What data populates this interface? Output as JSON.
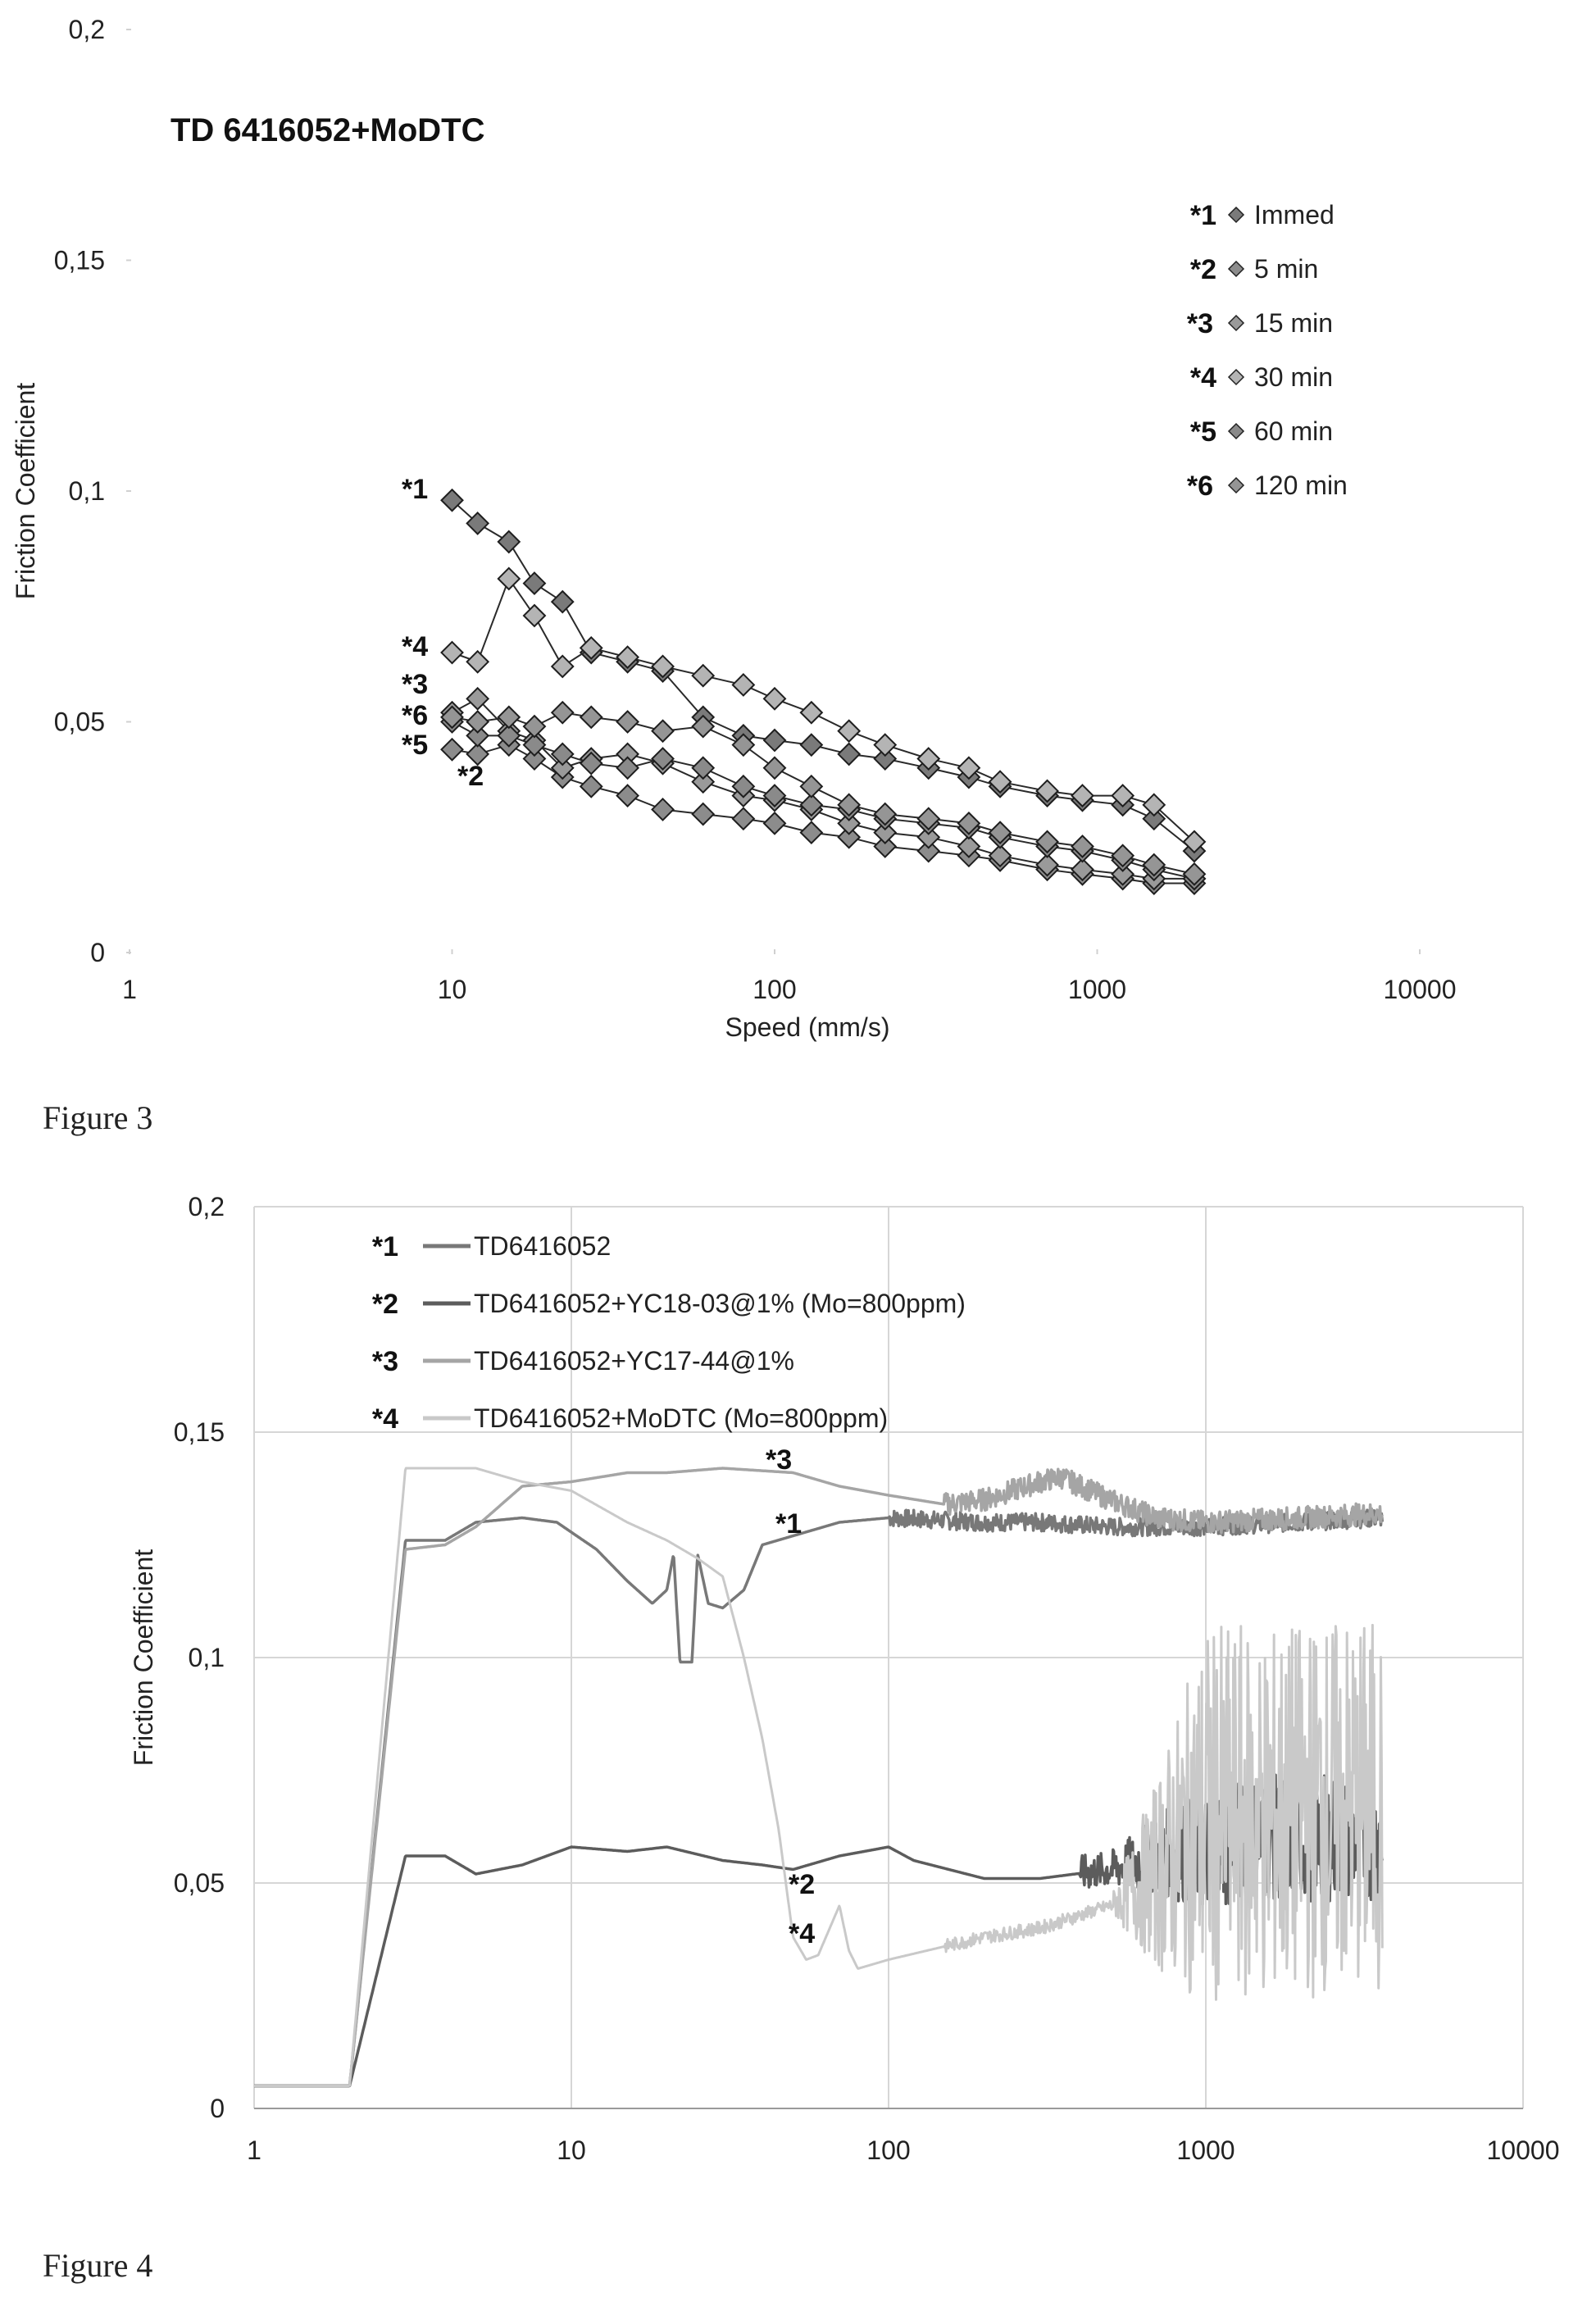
{
  "chart_data": [
    {
      "type": "line",
      "title": "TD 6416052+MoDTC",
      "xlabel": "Speed (mm/s)",
      "ylabel": "Friction Coefficient",
      "x_scale": "log",
      "xlim": [
        1,
        10000
      ],
      "ylim": [
        0,
        0.2
      ],
      "x_ticks": [
        "1",
        "10",
        "100",
        "1000",
        "10000"
      ],
      "y_ticks": [
        "0",
        "0,05",
        "0,1",
        "0,15",
        "0,2"
      ],
      "legend_position": "top-right",
      "series": [
        {
          "tag": "*1",
          "name": "Immed",
          "color": "#7a7a7a",
          "points": [
            [
              10,
              0.098
            ],
            [
              12,
              0.093
            ],
            [
              15,
              0.089
            ],
            [
              18,
              0.08
            ],
            [
              22,
              0.076
            ],
            [
              27,
              0.065
            ],
            [
              35,
              0.063
            ],
            [
              45,
              0.061
            ],
            [
              60,
              0.051
            ],
            [
              80,
              0.047
            ],
            [
              100,
              0.046
            ],
            [
              130,
              0.045
            ],
            [
              170,
              0.043
            ],
            [
              220,
              0.042
            ],
            [
              300,
              0.04
            ],
            [
              400,
              0.038
            ],
            [
              500,
              0.036
            ],
            [
              700,
              0.034
            ],
            [
              900,
              0.033
            ],
            [
              1200,
              0.032
            ],
            [
              1500,
              0.029
            ],
            [
              2000,
              0.022
            ]
          ]
        },
        {
          "tag": "*2",
          "name": "5 min",
          "color": "#8c8c8c",
          "points": [
            [
              10,
              0.044
            ],
            [
              12,
              0.043
            ],
            [
              15,
              0.045
            ],
            [
              18,
              0.042
            ],
            [
              22,
              0.038
            ],
            [
              27,
              0.036
            ],
            [
              35,
              0.034
            ],
            [
              45,
              0.031
            ],
            [
              60,
              0.03
            ],
            [
              80,
              0.029
            ],
            [
              100,
              0.028
            ],
            [
              130,
              0.026
            ],
            [
              170,
              0.025
            ],
            [
              220,
              0.023
            ],
            [
              300,
              0.022
            ],
            [
              400,
              0.021
            ],
            [
              500,
              0.02
            ],
            [
              700,
              0.018
            ],
            [
              900,
              0.017
            ],
            [
              1200,
              0.016
            ],
            [
              1500,
              0.015
            ],
            [
              2000,
              0.015
            ]
          ]
        },
        {
          "tag": "*3",
          "name": "15 min",
          "color": "#9a9a9a",
          "points": [
            [
              10,
              0.052
            ],
            [
              12,
              0.055
            ],
            [
              15,
              0.048
            ],
            [
              18,
              0.046
            ],
            [
              22,
              0.04
            ],
            [
              27,
              0.042
            ],
            [
              35,
              0.043
            ],
            [
              45,
              0.041
            ],
            [
              60,
              0.037
            ],
            [
              80,
              0.034
            ],
            [
              100,
              0.033
            ],
            [
              130,
              0.031
            ],
            [
              170,
              0.028
            ],
            [
              220,
              0.026
            ],
            [
              300,
              0.025
            ],
            [
              400,
              0.023
            ],
            [
              500,
              0.021
            ],
            [
              700,
              0.019
            ],
            [
              900,
              0.018
            ],
            [
              1200,
              0.017
            ],
            [
              1500,
              0.016
            ],
            [
              2000,
              0.016
            ]
          ]
        },
        {
          "tag": "*4",
          "name": "30 min",
          "color": "#b4b4b4",
          "points": [
            [
              10,
              0.065
            ],
            [
              12,
              0.063
            ],
            [
              15,
              0.081
            ],
            [
              18,
              0.073
            ],
            [
              22,
              0.062
            ],
            [
              27,
              0.066
            ],
            [
              35,
              0.064
            ],
            [
              45,
              0.062
            ],
            [
              60,
              0.06
            ],
            [
              80,
              0.058
            ],
            [
              100,
              0.055
            ],
            [
              130,
              0.052
            ],
            [
              170,
              0.048
            ],
            [
              220,
              0.045
            ],
            [
              300,
              0.042
            ],
            [
              400,
              0.04
            ],
            [
              500,
              0.037
            ],
            [
              700,
              0.035
            ],
            [
              900,
              0.034
            ],
            [
              1200,
              0.034
            ],
            [
              1500,
              0.032
            ],
            [
              2000,
              0.024
            ]
          ]
        },
        {
          "tag": "*5",
          "name": "60 min",
          "color": "#8a8a8a",
          "points": [
            [
              10,
              0.05
            ],
            [
              12,
              0.047
            ],
            [
              15,
              0.047
            ],
            [
              18,
              0.045
            ],
            [
              22,
              0.043
            ],
            [
              27,
              0.041
            ],
            [
              35,
              0.04
            ],
            [
              45,
              0.042
            ],
            [
              60,
              0.04
            ],
            [
              80,
              0.036
            ],
            [
              100,
              0.034
            ],
            [
              130,
              0.032
            ],
            [
              170,
              0.031
            ],
            [
              220,
              0.029
            ],
            [
              300,
              0.028
            ],
            [
              400,
              0.027
            ],
            [
              500,
              0.025
            ],
            [
              700,
              0.023
            ],
            [
              900,
              0.022
            ],
            [
              1200,
              0.02
            ],
            [
              1500,
              0.018
            ],
            [
              2000,
              0.016
            ]
          ]
        },
        {
          "tag": "*6",
          "name": "120 min",
          "color": "#959595",
          "points": [
            [
              10,
              0.051
            ],
            [
              12,
              0.05
            ],
            [
              15,
              0.051
            ],
            [
              18,
              0.049
            ],
            [
              22,
              0.052
            ],
            [
              27,
              0.051
            ],
            [
              35,
              0.05
            ],
            [
              45,
              0.048
            ],
            [
              60,
              0.049
            ],
            [
              80,
              0.045
            ],
            [
              100,
              0.04
            ],
            [
              130,
              0.036
            ],
            [
              170,
              0.032
            ],
            [
              220,
              0.03
            ],
            [
              300,
              0.029
            ],
            [
              400,
              0.028
            ],
            [
              500,
              0.026
            ],
            [
              700,
              0.024
            ],
            [
              900,
              0.023
            ],
            [
              1200,
              0.021
            ],
            [
              1500,
              0.019
            ],
            [
              2000,
              0.017
            ]
          ]
        }
      ],
      "tag_labels": [
        {
          "tag": "*1",
          "x": 10,
          "y": 0.098
        },
        {
          "tag": "*4",
          "x": 10,
          "y": 0.064
        },
        {
          "tag": "*3",
          "x": 10,
          "y": 0.056
        },
        {
          "tag": "*6",
          "x": 10,
          "y": 0.049
        },
        {
          "tag": "*5",
          "x": 10,
          "y": 0.043
        },
        {
          "tag": "*2",
          "x": 12,
          "y": 0.036
        }
      ]
    },
    {
      "type": "line",
      "title": "",
      "xlabel": "",
      "ylabel": "Friction Coefficient",
      "x_scale": "log",
      "xlim": [
        1,
        10000
      ],
      "ylim": [
        0,
        0.2
      ],
      "x_ticks": [
        "1",
        "10",
        "100",
        "1000",
        "10000"
      ],
      "y_ticks": [
        "0",
        "0,05",
        "0,1",
        "0,15",
        "0,2"
      ],
      "grid": true,
      "legend_position": "top-left",
      "series": [
        {
          "tag": "*1",
          "name": "TD6416052",
          "color": "#787878",
          "noise_from": 100,
          "noise_amp": 0.002,
          "points": [
            [
              1,
              0.005
            ],
            [
              2,
              0.005
            ],
            [
              3,
              0.126
            ],
            [
              4,
              0.126
            ],
            [
              5,
              0.13
            ],
            [
              7,
              0.131
            ],
            [
              9,
              0.13
            ],
            [
              12,
              0.124
            ],
            [
              15,
              0.117
            ],
            [
              18,
              0.112
            ],
            [
              20,
              0.115
            ],
            [
              21,
              0.123
            ],
            [
              22,
              0.099
            ],
            [
              24,
              0.099
            ],
            [
              25,
              0.123
            ],
            [
              27,
              0.112
            ],
            [
              30,
              0.111
            ],
            [
              35,
              0.115
            ],
            [
              40,
              0.125
            ],
            [
              50,
              0.127
            ],
            [
              70,
              0.13
            ],
            [
              100,
              0.131
            ],
            [
              200,
              0.13
            ],
            [
              300,
              0.13
            ],
            [
              500,
              0.129
            ],
            [
              1000,
              0.129
            ],
            [
              2000,
              0.13
            ],
            [
              3600,
              0.131
            ]
          ]
        },
        {
          "tag": "*2",
          "name": "TD6416052+YC18-03@1% (Mo=800ppm)",
          "color": "#5c5c5c",
          "noise_from": 400,
          "noise_amp": 0.004,
          "noise_grow": 3.5,
          "points": [
            [
              1,
              0.005
            ],
            [
              2,
              0.005
            ],
            [
              3,
              0.056
            ],
            [
              4,
              0.056
            ],
            [
              5,
              0.052
            ],
            [
              7,
              0.054
            ],
            [
              10,
              0.058
            ],
            [
              15,
              0.057
            ],
            [
              20,
              0.058
            ],
            [
              30,
              0.055
            ],
            [
              40,
              0.054
            ],
            [
              50,
              0.053
            ],
            [
              70,
              0.056
            ],
            [
              100,
              0.058
            ],
            [
              120,
              0.055
            ],
            [
              200,
              0.051
            ],
            [
              300,
              0.051
            ],
            [
              500,
              0.053
            ],
            [
              800,
              0.057
            ],
            [
              1000,
              0.057
            ],
            [
              1500,
              0.06
            ],
            [
              2500,
              0.06
            ],
            [
              3600,
              0.06
            ]
          ]
        },
        {
          "tag": "*3",
          "name": "TD6416052+YC17-44@1%",
          "color": "#a5a5a5",
          "noise_from": 150,
          "noise_amp": 0.0025,
          "points": [
            [
              1,
              0.005
            ],
            [
              2,
              0.005
            ],
            [
              3,
              0.124
            ],
            [
              4,
              0.125
            ],
            [
              5,
              0.129
            ],
            [
              7,
              0.138
            ],
            [
              10,
              0.139
            ],
            [
              15,
              0.141
            ],
            [
              20,
              0.141
            ],
            [
              30,
              0.142
            ],
            [
              50,
              0.141
            ],
            [
              70,
              0.138
            ],
            [
              100,
              0.136
            ],
            [
              150,
              0.134
            ],
            [
              200,
              0.135
            ],
            [
              300,
              0.139
            ],
            [
              350,
              0.14
            ],
            [
              500,
              0.135
            ],
            [
              700,
              0.131
            ],
            [
              1000,
              0.13
            ],
            [
              2000,
              0.131
            ],
            [
              3600,
              0.132
            ]
          ]
        },
        {
          "tag": "*4",
          "name": "TD6416052+MoDTC (Mo=800ppm)",
          "color": "#c9c9c9",
          "noise_from": 150,
          "noise_amp": 0.0015,
          "noise_grow": 28,
          "points": [
            [
              1,
              0.005
            ],
            [
              2,
              0.005
            ],
            [
              3,
              0.142
            ],
            [
              4,
              0.142
            ],
            [
              5,
              0.142
            ],
            [
              7,
              0.139
            ],
            [
              10,
              0.137
            ],
            [
              15,
              0.13
            ],
            [
              20,
              0.126
            ],
            [
              25,
              0.122
            ],
            [
              30,
              0.118
            ],
            [
              35,
              0.1
            ],
            [
              40,
              0.082
            ],
            [
              45,
              0.062
            ],
            [
              50,
              0.038
            ],
            [
              55,
              0.033
            ],
            [
              60,
              0.034
            ],
            [
              70,
              0.045
            ],
            [
              75,
              0.035
            ],
            [
              80,
              0.031
            ],
            [
              100,
              0.033
            ],
            [
              200,
              0.038
            ],
            [
              300,
              0.04
            ],
            [
              500,
              0.045
            ],
            [
              700,
              0.052
            ],
            [
              1000,
              0.065
            ],
            [
              1500,
              0.065
            ],
            [
              2500,
              0.067
            ],
            [
              3600,
              0.067
            ]
          ]
        }
      ],
      "tag_labels": [
        {
          "tag": "*3",
          "x": 52,
          "y": 0.146
        },
        {
          "tag": "*1",
          "x": 55,
          "y": 0.135
        },
        {
          "tag": "*2",
          "x": 58,
          "y": 0.057
        },
        {
          "tag": "*4",
          "x": 58,
          "y": 0.046
        }
      ]
    }
  ],
  "captions": {
    "fig3": "Figure 3",
    "fig4": "Figure 4"
  }
}
